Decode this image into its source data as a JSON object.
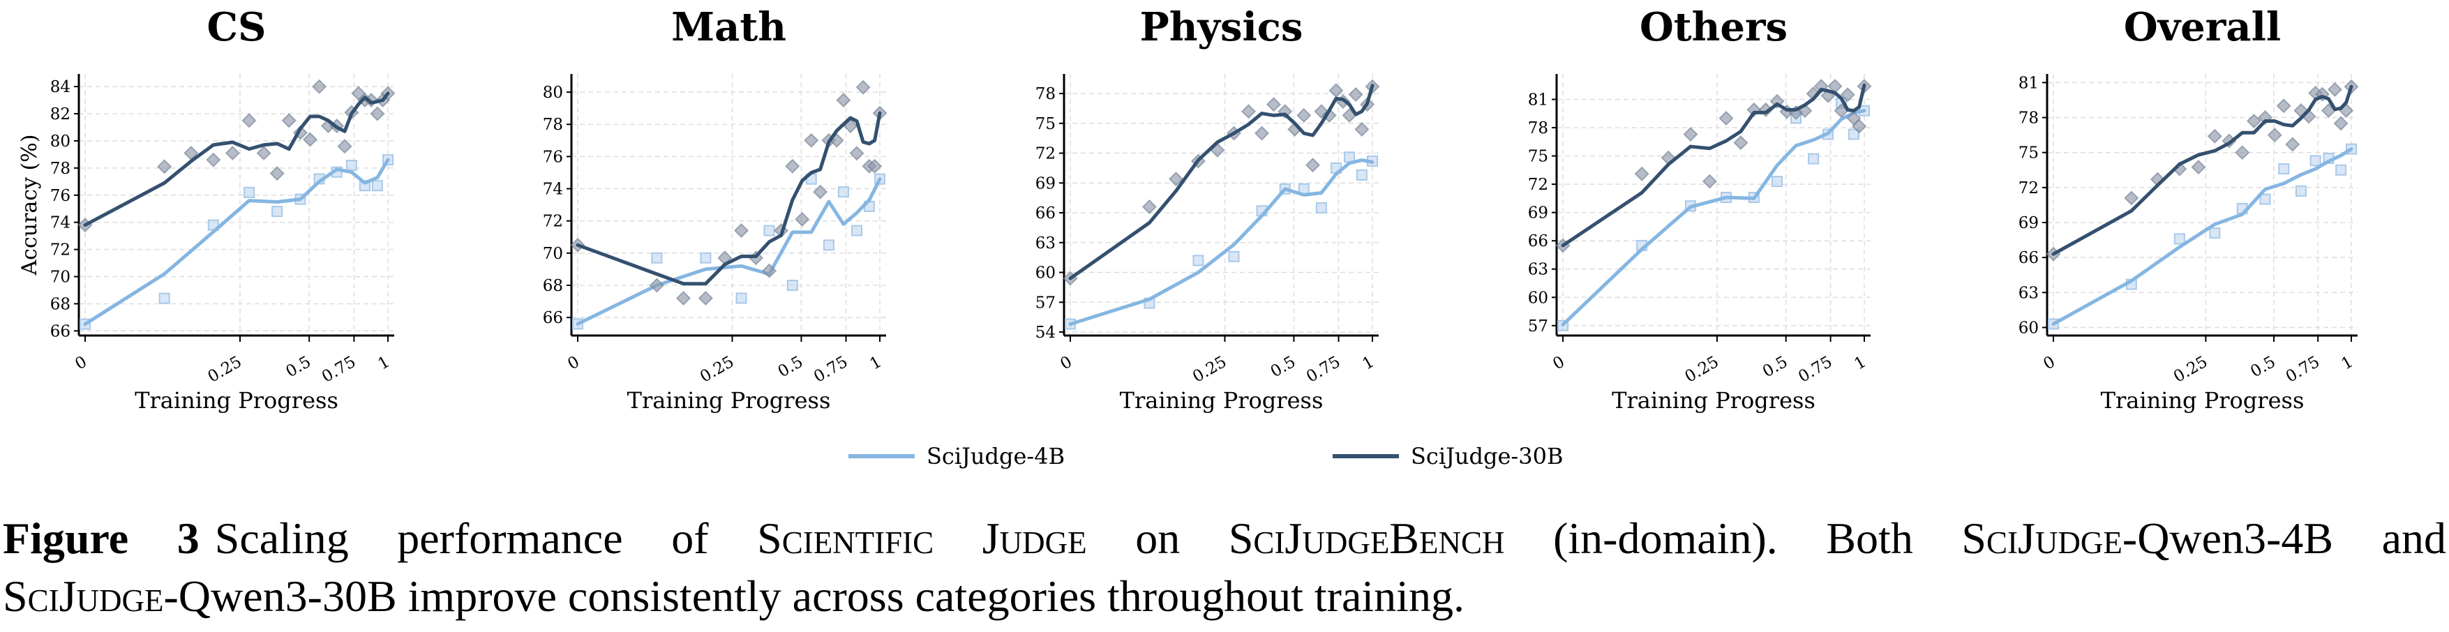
{
  "colors": {
    "sj4b": "#85b6e2",
    "sj30b": "#34506f",
    "grid": "#dddddd",
    "axis": "#000000"
  },
  "legend": [
    {
      "label": "SciJudge-4B",
      "series": "4B"
    },
    {
      "label": "SciJudge-30B",
      "series": "30B"
    }
  ],
  "caption": {
    "figure_label": "Figure 3",
    "p1": "Scaling performance of ",
    "sc1": "Scientific Judge",
    "p2": " on ",
    "sc2": "SciJudgeBench",
    "p3": " (in-domain). Both ",
    "sc3": "SciJudge",
    "p4": "-Qwen3-4B and",
    "sc4": "SciJudge",
    "p5": "-Qwen3-30B improve consistently across categories throughout training."
  },
  "chart_data": [
    {
      "type": "line",
      "title": "CS",
      "xlabel": "Training Progress",
      "ylabel": "Accuracy (%)",
      "xticks": [
        0,
        0.25,
        0.5,
        0.75,
        1
      ],
      "xtick_labels": [
        "0",
        "0.25",
        "0.5",
        "0.75",
        "1"
      ],
      "yticks": [
        66,
        68,
        70,
        72,
        74,
        76,
        78,
        80,
        82,
        84
      ],
      "ylim": [
        65.66,
        84.93
      ],
      "grid": true,
      "x_30B": [
        0,
        0.128,
        0.171,
        0.207,
        0.238,
        0.283,
        0.336,
        0.384,
        0.427,
        0.468,
        0.505,
        0.556,
        0.606,
        0.654,
        0.698,
        0.736,
        0.783,
        0.83,
        0.877,
        0.922,
        0.962,
        1
      ],
      "x_4B": [
        0,
        0.128,
        0.207,
        0.283,
        0.384,
        0.468,
        0.556,
        0.654,
        0.736,
        0.83,
        0.922,
        1
      ],
      "series": [
        {
          "name": "SciJudge-4B",
          "key": "4B",
          "smoothed": [
            66.5,
            70.2,
            73.3,
            75.6,
            75.5,
            75.7,
            77.0,
            77.9,
            77.7,
            76.9,
            77.3,
            78.6
          ],
          "raw": [
            66.5,
            68.4,
            73.8,
            76.2,
            74.8,
            75.7,
            77.2,
            77.7,
            78.2,
            76.7,
            76.7,
            78.6
          ]
        },
        {
          "name": "SciJudge-30B",
          "key": "30B",
          "smoothed": [
            73.8,
            76.9,
            78.5,
            79.7,
            79.9,
            79.4,
            79.7,
            79.8,
            79.4,
            80.9,
            81.8,
            81.8,
            81.5,
            81.0,
            80.7,
            82.0,
            82.7,
            83.2,
            82.8,
            82.9,
            83.0,
            83.5
          ],
          "raw": [
            73.8,
            78.1,
            79.1,
            78.6,
            79.1,
            81.5,
            79.1,
            77.6,
            81.5,
            80.6,
            80.1,
            84.0,
            81.1,
            81.1,
            79.6,
            82.1,
            83.5,
            83.0,
            83.0,
            82.0,
            83.0,
            83.5
          ]
        }
      ]
    },
    {
      "type": "line",
      "title": "Math",
      "xlabel": "Training Progress",
      "ylabel": "",
      "xticks": [
        0,
        0.25,
        0.5,
        0.75,
        1
      ],
      "xtick_labels": [
        "0",
        "0.25",
        "0.5",
        "0.75",
        "1"
      ],
      "yticks": [
        66,
        68,
        70,
        72,
        74,
        76,
        78,
        80
      ],
      "ylim": [
        64.88,
        81.13
      ],
      "grid": true,
      "x_30B": [
        0,
        0.128,
        0.171,
        0.207,
        0.238,
        0.283,
        0.336,
        0.384,
        0.427,
        0.468,
        0.505,
        0.556,
        0.606,
        0.654,
        0.698,
        0.736,
        0.783,
        0.83,
        0.877,
        0.922,
        0.962,
        1
      ],
      "x_4B": [
        0,
        0.128,
        0.207,
        0.283,
        0.384,
        0.468,
        0.556,
        0.654,
        0.736,
        0.83,
        0.922,
        1
      ],
      "series": [
        {
          "name": "SciJudge-4B",
          "key": "4B",
          "smoothed": [
            65.6,
            68.0,
            69.0,
            69.2,
            68.7,
            71.3,
            71.3,
            73.2,
            71.8,
            72.5,
            73.3,
            74.6
          ],
          "raw": [
            65.6,
            69.7,
            69.7,
            67.2,
            71.4,
            68.0,
            74.6,
            70.5,
            73.8,
            71.4,
            72.9,
            74.6
          ]
        },
        {
          "name": "SciJudge-30B",
          "key": "30B",
          "smoothed": [
            70.5,
            68.7,
            68.1,
            68.1,
            69.3,
            69.8,
            69.8,
            70.7,
            71.1,
            73.3,
            74.5,
            75.0,
            75.2,
            76.9,
            77.6,
            78.0,
            78.4,
            78.2,
            76.9,
            76.8,
            77.0,
            78.7
          ],
          "raw": [
            70.5,
            68.0,
            67.2,
            67.2,
            69.7,
            71.4,
            69.7,
            68.9,
            71.4,
            75.4,
            72.1,
            77.0,
            73.8,
            77.0,
            77.0,
            79.5,
            77.9,
            76.2,
            80.3,
            75.4,
            75.4,
            78.7
          ]
        }
      ]
    },
    {
      "type": "line",
      "title": "Physics",
      "xlabel": "Training Progress",
      "ylabel": "",
      "xticks": [
        0,
        0.25,
        0.5,
        0.75,
        1
      ],
      "xtick_labels": [
        "0",
        "0.25",
        "0.5",
        "0.75",
        "1"
      ],
      "yticks": [
        54,
        57,
        60,
        63,
        66,
        69,
        72,
        75,
        78
      ],
      "ylim": [
        53.65,
        79.97
      ],
      "grid": true,
      "x_30B": [
        0,
        0.128,
        0.171,
        0.207,
        0.238,
        0.283,
        0.336,
        0.384,
        0.427,
        0.468,
        0.505,
        0.556,
        0.606,
        0.654,
        0.698,
        0.736,
        0.783,
        0.83,
        0.877,
        0.922,
        0.962,
        1
      ],
      "x_4B": [
        0,
        0.128,
        0.207,
        0.283,
        0.384,
        0.468,
        0.556,
        0.654,
        0.736,
        0.83,
        0.922,
        1
      ],
      "series": [
        {
          "name": "SciJudge-4B",
          "key": "4B",
          "smoothed": [
            54.8,
            57.3,
            60.0,
            62.8,
            65.7,
            68.4,
            67.8,
            68.0,
            69.9,
            71.0,
            71.3,
            71.1
          ],
          "raw": [
            54.8,
            56.9,
            61.2,
            61.6,
            66.2,
            68.4,
            68.4,
            66.5,
            70.5,
            71.6,
            69.8,
            71.2
          ]
        },
        {
          "name": "SciJudge-30B",
          "key": "30B",
          "smoothed": [
            59.4,
            65.0,
            68.2,
            71.3,
            73.1,
            74.0,
            74.9,
            76.0,
            75.8,
            75.9,
            75.0,
            74.0,
            73.8,
            75.0,
            76.3,
            77.5,
            77.4,
            76.9,
            75.9,
            76.2,
            77.0,
            78.8
          ],
          "raw": [
            59.4,
            66.6,
            69.4,
            71.2,
            72.3,
            74.0,
            76.2,
            74.0,
            76.9,
            76.2,
            74.4,
            75.8,
            70.8,
            76.2,
            75.8,
            78.3,
            77.2,
            75.8,
            77.9,
            74.4,
            76.9,
            78.7
          ]
        }
      ]
    },
    {
      "type": "line",
      "title": "Others",
      "xlabel": "Training Progress",
      "ylabel": "",
      "xticks": [
        0,
        0.25,
        0.5,
        0.75,
        1
      ],
      "xtick_labels": [
        "0",
        "0.25",
        "0.5",
        "0.75",
        "1"
      ],
      "yticks": [
        57,
        60,
        63,
        66,
        69,
        72,
        75,
        78,
        81
      ],
      "ylim": [
        55.95,
        83.7
      ],
      "grid": true,
      "x_30B": [
        0,
        0.128,
        0.171,
        0.207,
        0.238,
        0.283,
        0.336,
        0.384,
        0.427,
        0.468,
        0.505,
        0.556,
        0.606,
        0.654,
        0.698,
        0.736,
        0.783,
        0.83,
        0.877,
        0.922,
        0.962,
        1
      ],
      "x_4B": [
        0,
        0.128,
        0.207,
        0.283,
        0.384,
        0.468,
        0.556,
        0.654,
        0.736,
        0.83,
        0.922,
        1
      ],
      "series": [
        {
          "name": "SciJudge-4B",
          "key": "4B",
          "smoothed": [
            57.1,
            65.1,
            69.6,
            70.6,
            70.5,
            74.0,
            76.1,
            76.7,
            77.4,
            78.9,
            79.6,
            79.8
          ],
          "raw": [
            57.0,
            65.5,
            69.7,
            70.6,
            70.6,
            72.3,
            79.0,
            74.7,
            77.3,
            80.6,
            77.3,
            79.8
          ]
        },
        {
          "name": "SciJudge-30B",
          "key": "30B",
          "smoothed": [
            65.5,
            71.1,
            74.1,
            76.0,
            75.8,
            76.6,
            77.6,
            79.6,
            79.6,
            80.5,
            79.9,
            79.9,
            80.4,
            81.05,
            82.05,
            81.9,
            81.7,
            81.1,
            79.9,
            79.8,
            80.2,
            82.5
          ],
          "raw": [
            65.5,
            73.1,
            74.8,
            77.3,
            72.3,
            79.0,
            76.4,
            79.9,
            79.9,
            80.8,
            79.7,
            79.6,
            79.8,
            81.6,
            82.4,
            81.4,
            82.4,
            79.8,
            81.5,
            79.0,
            78.15,
            82.4
          ]
        }
      ]
    },
    {
      "type": "line",
      "title": "Overall",
      "xlabel": "Training Progress",
      "ylabel": "",
      "xticks": [
        0,
        0.25,
        0.5,
        0.75,
        1
      ],
      "xtick_labels": [
        "0",
        "0.25",
        "0.5",
        "0.75",
        "1"
      ],
      "yticks": [
        60,
        63,
        66,
        69,
        72,
        75,
        78,
        81
      ],
      "ylim": [
        59.31,
        81.74
      ],
      "grid": true,
      "x_30B": [
        0,
        0.128,
        0.171,
        0.207,
        0.238,
        0.283,
        0.336,
        0.384,
        0.427,
        0.468,
        0.505,
        0.556,
        0.606,
        0.654,
        0.698,
        0.736,
        0.783,
        0.83,
        0.877,
        0.922,
        0.962,
        1
      ],
      "x_4B": [
        0,
        0.128,
        0.207,
        0.283,
        0.384,
        0.468,
        0.556,
        0.654,
        0.736,
        0.83,
        0.922,
        1
      ],
      "series": [
        {
          "name": "SciJudge-4B",
          "key": "4B",
          "smoothed": [
            60.3,
            64.0,
            66.9,
            68.85,
            69.7,
            71.85,
            72.35,
            73.1,
            73.6,
            74.25,
            74.75,
            75.3
          ],
          "raw": [
            60.3,
            63.7,
            67.6,
            68.1,
            70.2,
            71.0,
            73.6,
            71.7,
            74.3,
            74.5,
            73.5,
            75.3
          ]
        },
        {
          "name": "SciJudge-30B",
          "key": "30B",
          "smoothed": [
            66.3,
            70.0,
            72.2,
            74.0,
            74.8,
            75.15,
            75.8,
            76.7,
            76.7,
            77.7,
            77.7,
            77.4,
            77.3,
            77.95,
            78.65,
            79.55,
            79.8,
            79.6,
            78.7,
            78.8,
            79.3,
            80.65
          ],
          "raw": [
            66.3,
            71.1,
            72.7,
            73.6,
            73.75,
            76.4,
            76.0,
            75.0,
            77.7,
            78.0,
            76.5,
            79.0,
            75.7,
            78.6,
            78.1,
            80.1,
            80.0,
            78.6,
            80.4,
            77.5,
            78.6,
            80.65
          ]
        }
      ]
    }
  ]
}
